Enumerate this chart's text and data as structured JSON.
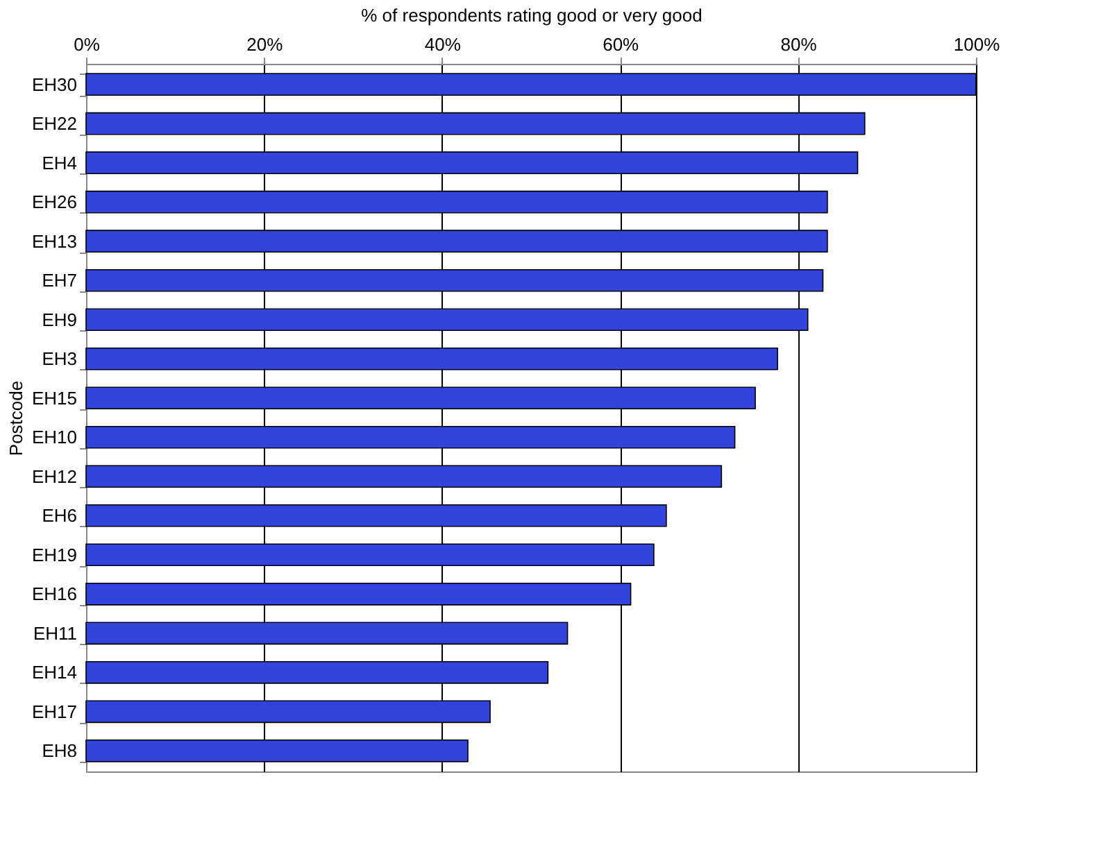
{
  "chart_data": {
    "type": "bar",
    "orientation": "horizontal",
    "xlabel": "% of respondents rating good or very good",
    "ylabel": "Postcode",
    "categories": [
      "EH30",
      "EH22",
      "EH4",
      "EH26",
      "EH13",
      "EH7",
      "EH9",
      "EH3",
      "EH15",
      "EH10",
      "EH12",
      "EH6",
      "EH19",
      "EH16",
      "EH11",
      "EH14",
      "EH17",
      "EH8"
    ],
    "values": [
      100,
      87.5,
      86.7,
      83.3,
      83.3,
      82.8,
      81.1,
      77.7,
      75.2,
      72.9,
      71.4,
      65.2,
      63.8,
      61.2,
      54.1,
      51.9,
      45.4,
      42.9
    ],
    "color": "#3344dd",
    "xlim": [
      0,
      100
    ],
    "xticks": [
      {
        "value": 0,
        "label": "0%"
      },
      {
        "value": 20,
        "label": "20%"
      },
      {
        "value": 40,
        "label": "40%"
      },
      {
        "value": 60,
        "label": "60%"
      },
      {
        "value": 80,
        "label": "80%"
      },
      {
        "value": 100,
        "label": "100%"
      }
    ],
    "grid": "x"
  }
}
